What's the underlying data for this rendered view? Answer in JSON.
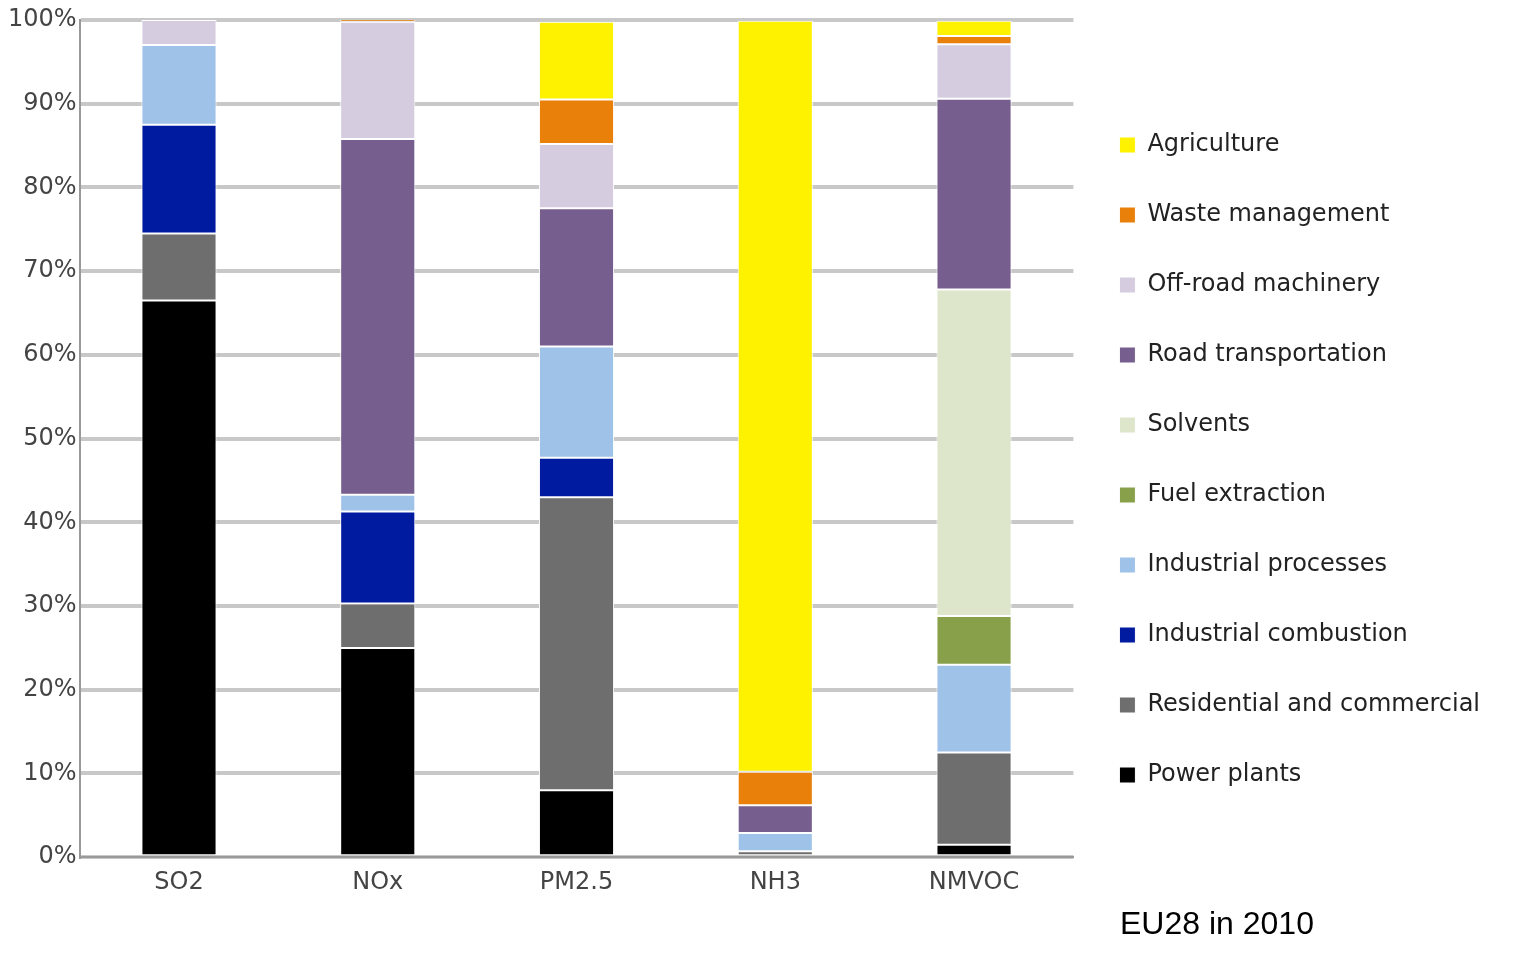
{
  "chart_data": {
    "type": "bar",
    "stacked": true,
    "categories": [
      "SO2",
      "NOx",
      "PM2.5",
      "NH3",
      "NMVOC"
    ],
    "series": [
      {
        "name": "Power plants",
        "color": "#000000",
        "values": [
          66.5,
          25,
          8,
          null,
          1.5
        ]
      },
      {
        "name": "Residential and commercial",
        "color": "#6e6e6e",
        "values": [
          8,
          5.3,
          35,
          0.7,
          11
        ]
      },
      {
        "name": "Industrial combustion",
        "color": "#001aa0",
        "values": [
          13,
          11,
          4.7,
          null,
          null
        ]
      },
      {
        "name": "Industrial processes",
        "color": "#9fc2e8",
        "values": [
          9.5,
          2,
          13.3,
          2.2,
          10.5
        ]
      },
      {
        "name": "Fuel extraction",
        "color": "#88a04a",
        "values": [
          null,
          null,
          null,
          null,
          5.8
        ]
      },
      {
        "name": "Solvents",
        "color": "#dde6cb",
        "values": [
          null,
          null,
          null,
          null,
          39
        ]
      },
      {
        "name": "Road transportation",
        "color": "#765e8e",
        "values": [
          null,
          42.5,
          16.5,
          3.3,
          22.8
        ]
      },
      {
        "name": "Off-road machinery",
        "color": "#d5cce0",
        "values": [
          3,
          14,
          7.7,
          null,
          6.5
        ]
      },
      {
        "name": "Waste management",
        "color": "#e8800a",
        "values": [
          null,
          0.5,
          5.3,
          4,
          1
        ]
      },
      {
        "name": "Agriculture",
        "color": "#fff200",
        "values": [
          null,
          null,
          9.3,
          89.7,
          1.8
        ]
      }
    ],
    "ylim": [
      0,
      100
    ],
    "yticks": [
      {
        "value": 0,
        "label": "0%"
      },
      {
        "value": 10,
        "label": "10%"
      },
      {
        "value": 20,
        "label": "20%"
      },
      {
        "value": 30,
        "label": "30%"
      },
      {
        "value": 40,
        "label": "40%"
      },
      {
        "value": 50,
        "label": "50%"
      },
      {
        "value": 60,
        "label": "60%"
      },
      {
        "value": 70,
        "label": "70%"
      },
      {
        "value": 80,
        "label": "80%"
      },
      {
        "value": 90,
        "label": "90%"
      },
      {
        "value": 100,
        "label": "100%"
      }
    ],
    "grid": "y",
    "legend": "right",
    "annotations": [
      "EU28 in 2010"
    ]
  }
}
